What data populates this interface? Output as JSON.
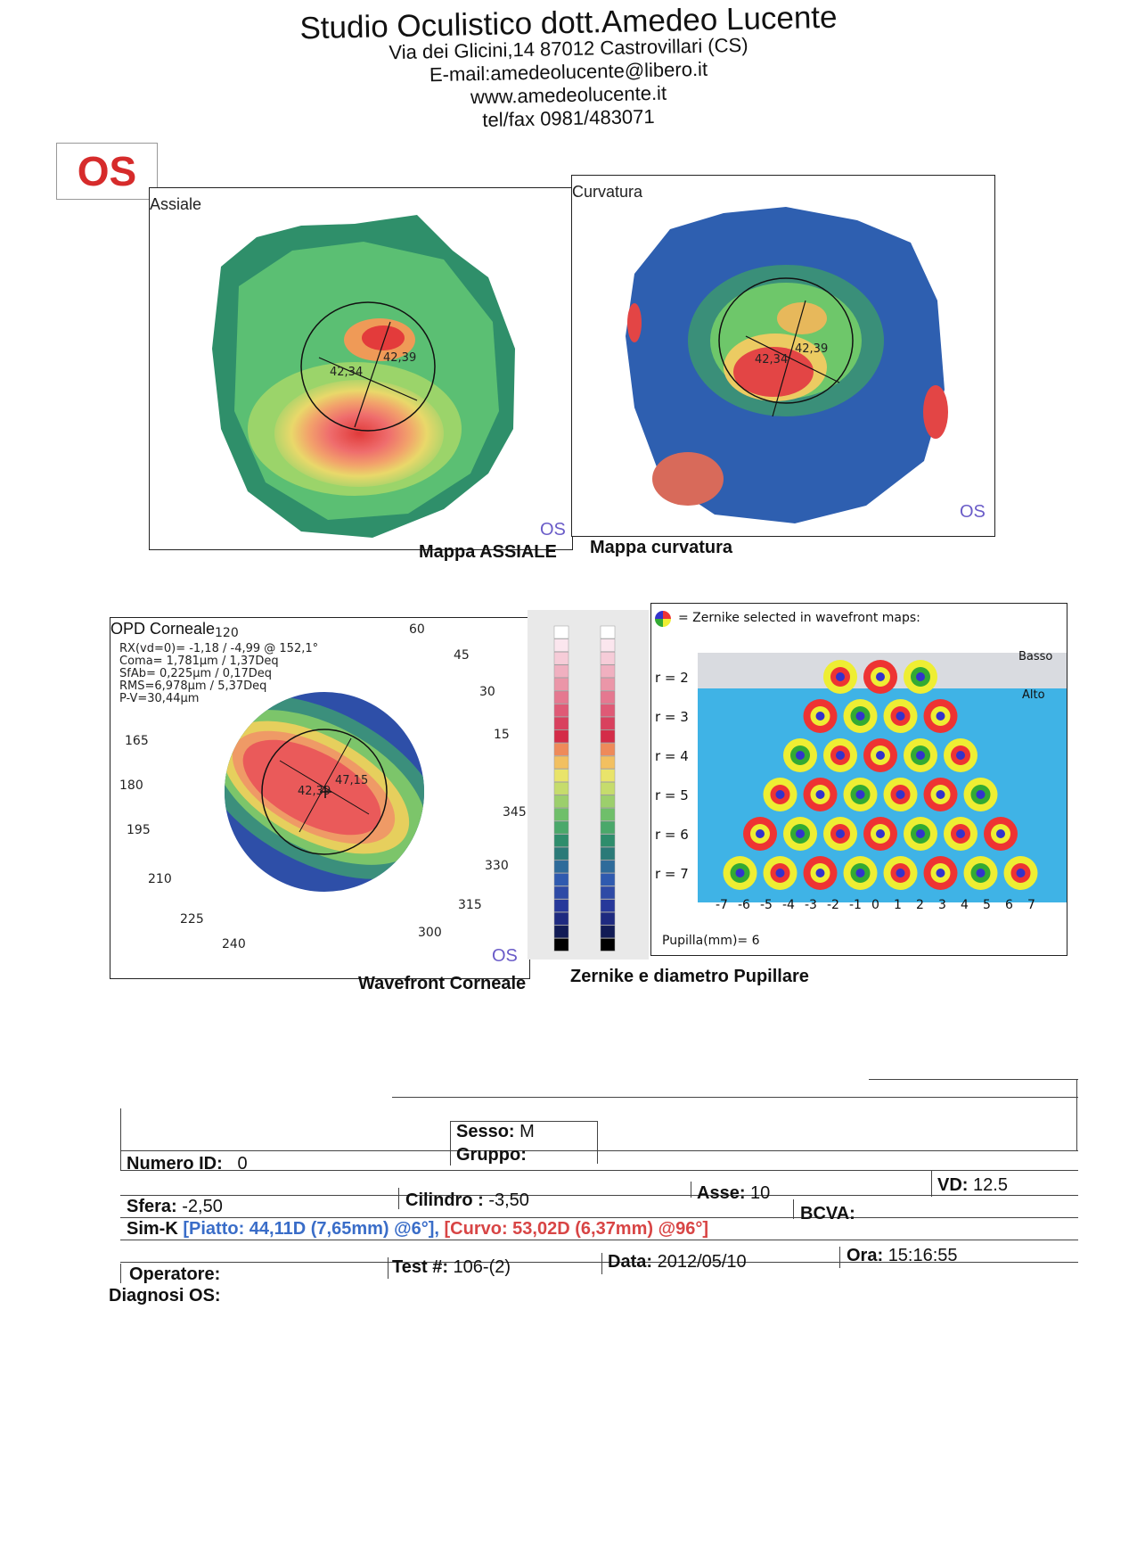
{
  "header": {
    "title": "Studio Oculistico dott.Amedeo Lucente",
    "lines": [
      "Via dei Glicini,14  87012 Castrovillari (CS)",
      "E-mail:amedeolucente@libero.it",
      "www.amedeolucente.it",
      "tel/fax 0981/483071"
    ]
  },
  "eye_label": "OS",
  "maps": {
    "axial": {
      "title": "Assiale",
      "caption": "Mappa ASSIALE",
      "os": "OS",
      "v1": "42,39",
      "v2": "42,34"
    },
    "curvature": {
      "title": "Curvatura",
      "caption": "Mappa curvatura",
      "os": "OS",
      "v1": "42,39",
      "v2": "42,34"
    }
  },
  "wavefront": {
    "title": "OPD Corneale",
    "top_angle": "120",
    "lines": [
      "RX(vd=0)= -1,18 / -4,99 @ 152,1°",
      "Coma= 1,781µm / 1,37Deq",
      "SfAb= 0,225µm / 0,17Deq",
      "RMS=6,978µm / 5,37Deq",
      "P-V=30,44µm"
    ],
    "angles": [
      "60",
      "45",
      "30",
      "15",
      "165",
      "180",
      "195",
      "345",
      "210",
      "330",
      "225",
      "315",
      "240",
      "300"
    ],
    "os": "OS",
    "caption": "Wavefront Corneale",
    "center_values": [
      "42,39",
      "47,15"
    ]
  },
  "zernike": {
    "legend": "= Zernike selected in wavefront maps:",
    "basso": "Basso",
    "alto": "Alto",
    "rows": [
      "r = 2",
      "r = 3",
      "r = 4",
      "r = 5",
      "r = 6",
      "r = 7"
    ],
    "axis": [
      "-7",
      "-6",
      "-5",
      "-4",
      "-3",
      "-2",
      "-1",
      "0",
      "1",
      "2",
      "3",
      "4",
      "5",
      "6",
      "7"
    ],
    "pupil": "Pupilla(mm)= 6",
    "caption": "Zernike e diametro Pupillare"
  },
  "form": {
    "sesso_label": "Sesso:",
    "sesso": "M",
    "gruppo_label": "Gruppo:",
    "id_label": "Numero ID:",
    "id": "0",
    "sfera_label": "Sfera:",
    "sfera": "-2,50",
    "cilindro_label": "Cilindro :",
    "cilindro": "-3,50",
    "asse_label": "Asse:",
    "asse": "10",
    "vd_label": "VD:",
    "vd": "12.5",
    "simk_label": "Sim-K",
    "piatto": "[Piatto: 44,11D (7,65mm) @6°],",
    "curvo": "[Curvo: 53,02D (6,37mm) @96°]",
    "bcva_label": "BCVA:",
    "operatore_label": "Operatore:",
    "test_label": "Test #:",
    "test": "106-(2)",
    "data_label": "Data:",
    "data": "2012/05/10",
    "ora_label": "Ora:",
    "ora": "15:16:55",
    "diagnosi_label": "Diagnosi OS:"
  }
}
